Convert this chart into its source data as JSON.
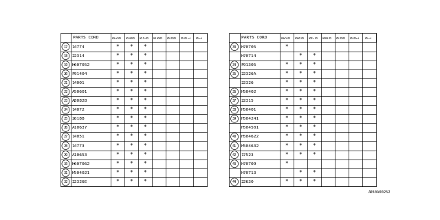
{
  "watermark": "A050A00252",
  "col_headers": [
    "8\n5\n0",
    "8\n6\n0",
    "8\n7\n0",
    "8\n8\n0",
    "9\n0\n0",
    "9\n0\n1",
    "9\n1"
  ],
  "left_table": {
    "rows": [
      {
        "num": 17,
        "part": "14774",
        "marks": [
          1,
          1,
          1,
          0,
          0,
          0,
          0
        ],
        "group_start": true
      },
      {
        "num": 18,
        "part": "22314",
        "marks": [
          1,
          1,
          1,
          0,
          0,
          0,
          0
        ],
        "group_start": true
      },
      {
        "num": 19,
        "part": "H607052",
        "marks": [
          1,
          1,
          1,
          0,
          0,
          0,
          0
        ],
        "group_start": true
      },
      {
        "num": 20,
        "part": "F91404",
        "marks": [
          1,
          1,
          1,
          0,
          0,
          0,
          0
        ],
        "group_start": true
      },
      {
        "num": 21,
        "part": "14001",
        "marks": [
          1,
          1,
          1,
          0,
          0,
          0,
          0
        ],
        "group_start": true
      },
      {
        "num": 22,
        "part": "A50601",
        "marks": [
          1,
          1,
          1,
          0,
          0,
          0,
          0
        ],
        "group_start": true
      },
      {
        "num": 23,
        "part": "A80828",
        "marks": [
          1,
          1,
          1,
          0,
          0,
          0,
          0
        ],
        "group_start": true
      },
      {
        "num": 24,
        "part": "14072",
        "marks": [
          1,
          1,
          1,
          0,
          0,
          0,
          0
        ],
        "group_start": true
      },
      {
        "num": 25,
        "part": "26188",
        "marks": [
          1,
          1,
          1,
          0,
          0,
          0,
          0
        ],
        "group_start": true
      },
      {
        "num": 26,
        "part": "A10637",
        "marks": [
          1,
          1,
          1,
          0,
          0,
          0,
          0
        ],
        "group_start": true
      },
      {
        "num": 27,
        "part": "14051",
        "marks": [
          1,
          1,
          1,
          0,
          0,
          0,
          0
        ],
        "group_start": true
      },
      {
        "num": 28,
        "part": "14773",
        "marks": [
          1,
          1,
          1,
          0,
          0,
          0,
          0
        ],
        "group_start": true
      },
      {
        "num": 29,
        "part": "A10653",
        "marks": [
          1,
          1,
          1,
          0,
          0,
          0,
          0
        ],
        "group_start": true
      },
      {
        "num": 30,
        "part": "H607062",
        "marks": [
          1,
          1,
          1,
          0,
          0,
          0,
          0
        ],
        "group_start": true
      },
      {
        "num": 31,
        "part": "H504021",
        "marks": [
          1,
          1,
          1,
          0,
          0,
          0,
          0
        ],
        "group_start": true
      },
      {
        "num": 32,
        "part": "22326E",
        "marks": [
          1,
          1,
          1,
          0,
          0,
          0,
          0
        ],
        "group_start": true
      }
    ]
  },
  "right_table": {
    "rows": [
      {
        "num": 33,
        "part": "H70705",
        "marks": [
          1,
          0,
          0,
          0,
          0,
          0,
          0
        ],
        "group_start": true
      },
      {
        "num": 33,
        "part": "H70714",
        "marks": [
          0,
          1,
          1,
          0,
          0,
          0,
          0
        ],
        "group_start": false
      },
      {
        "num": 34,
        "part": "F91305",
        "marks": [
          1,
          1,
          1,
          0,
          0,
          0,
          0
        ],
        "group_start": true
      },
      {
        "num": 35,
        "part": "22326A",
        "marks": [
          1,
          1,
          1,
          0,
          0,
          0,
          0
        ],
        "group_start": true
      },
      {
        "num": 35,
        "part": "22326",
        "marks": [
          1,
          1,
          1,
          0,
          0,
          0,
          0
        ],
        "group_start": false
      },
      {
        "num": 36,
        "part": "H50402",
        "marks": [
          1,
          1,
          1,
          0,
          0,
          0,
          0
        ],
        "group_start": true
      },
      {
        "num": 37,
        "part": "22315",
        "marks": [
          1,
          1,
          1,
          0,
          0,
          0,
          0
        ],
        "group_start": true
      },
      {
        "num": 38,
        "part": "H50401",
        "marks": [
          1,
          1,
          1,
          0,
          0,
          0,
          0
        ],
        "group_start": true
      },
      {
        "num": 39,
        "part": "H504241",
        "marks": [
          1,
          1,
          1,
          0,
          0,
          0,
          0
        ],
        "group_start": true
      },
      {
        "num": 39,
        "part": "H504501",
        "marks": [
          1,
          1,
          1,
          0,
          0,
          0,
          0
        ],
        "group_start": false
      },
      {
        "num": 40,
        "part": "H504622",
        "marks": [
          1,
          1,
          1,
          0,
          0,
          0,
          0
        ],
        "group_start": true
      },
      {
        "num": 41,
        "part": "H504632",
        "marks": [
          1,
          1,
          1,
          0,
          0,
          0,
          0
        ],
        "group_start": true
      },
      {
        "num": 42,
        "part": "17523",
        "marks": [
          1,
          1,
          1,
          0,
          0,
          0,
          0
        ],
        "group_start": true
      },
      {
        "num": 43,
        "part": "H70709",
        "marks": [
          1,
          0,
          0,
          0,
          0,
          0,
          0
        ],
        "group_start": true
      },
      {
        "num": 43,
        "part": "H70713",
        "marks": [
          0,
          1,
          1,
          0,
          0,
          0,
          0
        ],
        "group_start": false
      },
      {
        "num": 44,
        "part": "22630",
        "marks": [
          1,
          1,
          1,
          0,
          0,
          0,
          0
        ],
        "group_start": true
      }
    ]
  },
  "bg_color": "#ffffff",
  "line_color": "#000000",
  "text_color": "#000000"
}
